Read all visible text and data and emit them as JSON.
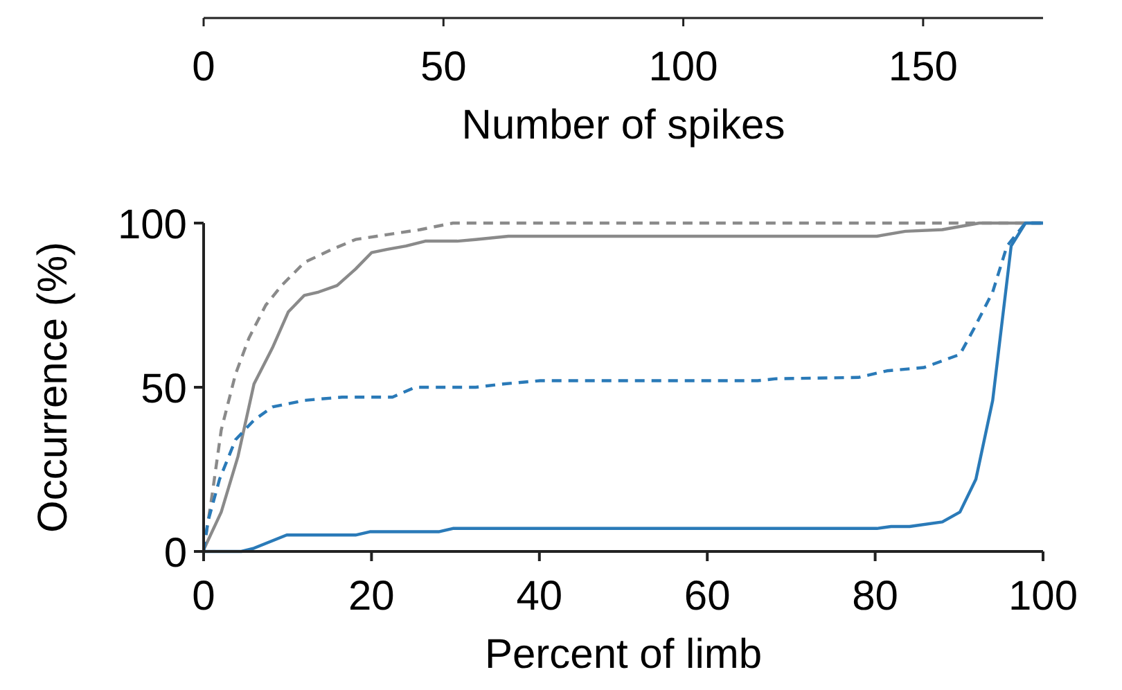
{
  "chart_data": {
    "type": "line",
    "xlabel": "Percent of limb",
    "ylabel": "Occurrence (%)",
    "x2label": "Number of spikes",
    "xlim": [
      0,
      100
    ],
    "xticks": [
      0,
      20,
      40,
      60,
      80,
      100
    ],
    "ylim": [
      0,
      100
    ],
    "yticks": [
      0,
      50,
      100
    ],
    "x2lim": [
      0,
      175
    ],
    "x2ticks": [
      0,
      50,
      100,
      150
    ],
    "series": [
      {
        "color": "#8a8a8a",
        "line_style": "solid",
        "x": [
          0,
          2.1,
          4.1,
          6,
          8.2,
          10.1,
          12,
          13.7,
          15.9,
          18.1,
          20,
          21.9,
          24.1,
          26.4,
          30.2,
          32.4,
          36.3,
          80.2,
          83.6,
          88,
          92.4,
          100
        ],
        "values": [
          0.5,
          12,
          29,
          51,
          62,
          73,
          78,
          79,
          81,
          86,
          91,
          92,
          93,
          94.5,
          94.5,
          95,
          96,
          96,
          97.5,
          98,
          100,
          100
        ]
      },
      {
        "color": "#8a8a8a",
        "line_style": "dashed",
        "x": [
          0,
          1,
          2.1,
          3.8,
          5.4,
          7.4,
          9.3,
          12,
          15.3,
          18.1,
          21.9,
          25.8,
          29.7,
          100
        ],
        "values": [
          0,
          17,
          37,
          54,
          65,
          75,
          81,
          88,
          92,
          95,
          96.5,
          98,
          100,
          100
        ]
      },
      {
        "color": "#2a7ab8",
        "line_style": "dashed",
        "x": [
          0,
          0.5,
          1.9,
          3.8,
          6,
          8.2,
          12,
          16.5,
          22.5,
          25.2,
          32.4,
          35.7,
          40.1,
          66,
          68.2,
          78,
          81.4,
          85.8,
          90.1,
          91.8,
          94,
          95.7,
          97.9,
          100
        ],
        "values": [
          0,
          9,
          22,
          34,
          40,
          44,
          46,
          47,
          47,
          50,
          50,
          51,
          52,
          52,
          52.6,
          53,
          55,
          56,
          60,
          68,
          79,
          93,
          100,
          100
        ]
      },
      {
        "color": "#2a7ab8",
        "line_style": "solid",
        "x": [
          0,
          4.5,
          6,
          9.9,
          18.1,
          19.8,
          28,
          29.7,
          80.2,
          81.9,
          84.1,
          88,
          90.1,
          92,
          94,
          96.2,
          97.9,
          100
        ],
        "values": [
          0,
          0,
          1,
          5,
          5,
          6,
          6,
          7,
          7,
          7.6,
          7.6,
          9,
          12,
          22,
          46,
          93,
          100,
          100
        ]
      }
    ]
  }
}
